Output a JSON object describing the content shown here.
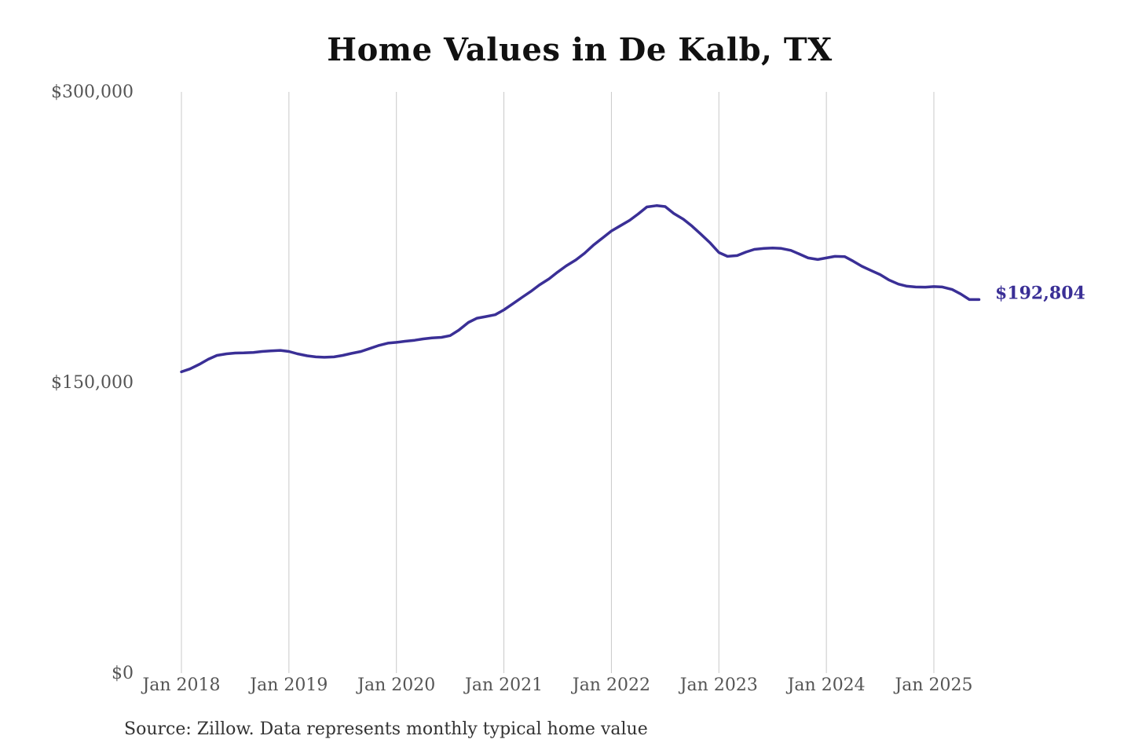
{
  "chart_data": {
    "type": "line",
    "title": "Home Values in De Kalb, TX",
    "xlabel": "",
    "ylabel": "",
    "source": "Source: Zillow. Data represents monthly typical home value",
    "ylim": [
      0,
      300000
    ],
    "yticks": [
      {
        "value": 0,
        "label": "$0"
      },
      {
        "value": 150000,
        "label": "$150,000"
      },
      {
        "value": 300000,
        "label": "$300,000"
      }
    ],
    "xlim": [
      2018.0,
      2025.5
    ],
    "xticks": [
      {
        "value": 2018,
        "label": "Jan 2018"
      },
      {
        "value": 2019,
        "label": "Jan 2019"
      },
      {
        "value": 2020,
        "label": "Jan 2020"
      },
      {
        "value": 2021,
        "label": "Jan 2021"
      },
      {
        "value": 2022,
        "label": "Jan 2022"
      },
      {
        "value": 2023,
        "label": "Jan 2023"
      },
      {
        "value": 2024,
        "label": "Jan 2024"
      },
      {
        "value": 2025,
        "label": "Jan 2025"
      }
    ],
    "grid": "vertical",
    "color": "#3a2f96",
    "end_label": "$192,804",
    "series": [
      {
        "x": [
          2018.0,
          2018.08,
          2018.17,
          2018.25,
          2018.33,
          2018.42,
          2018.5,
          2018.58,
          2018.67,
          2018.75,
          2018.83,
          2018.92,
          2019.0,
          2019.08,
          2019.17,
          2019.25,
          2019.33,
          2019.42,
          2019.5,
          2019.58,
          2019.67,
          2019.75,
          2019.83,
          2019.92,
          2020.0,
          2020.08,
          2020.17,
          2020.25,
          2020.33,
          2020.42,
          2020.5,
          2020.58,
          2020.67,
          2020.75,
          2020.83,
          2020.92,
          2021.0,
          2021.08,
          2021.17,
          2021.25,
          2021.33,
          2021.42,
          2021.5,
          2021.58,
          2021.67,
          2021.75,
          2021.83,
          2021.92,
          2022.0,
          2022.08,
          2022.17,
          2022.25,
          2022.33,
          2022.42,
          2022.5,
          2022.58,
          2022.67,
          2022.75,
          2022.83,
          2022.92,
          2023.0,
          2023.08,
          2023.17,
          2023.25,
          2023.33,
          2023.42,
          2023.5,
          2023.58,
          2023.67,
          2023.75,
          2023.83,
          2023.92,
          2024.0,
          2024.08,
          2024.17,
          2024.25,
          2024.33,
          2024.42,
          2024.5,
          2024.58,
          2024.67,
          2024.75,
          2024.83,
          2024.92,
          2025.0,
          2025.08,
          2025.17,
          2025.25,
          2025.33,
          2025.42
        ],
        "y": [
          155500,
          157000,
          159500,
          162000,
          164000,
          164800,
          165200,
          165300,
          165500,
          166000,
          166300,
          166600,
          166000,
          164800,
          163800,
          163200,
          163000,
          163200,
          164000,
          165000,
          166000,
          167500,
          169000,
          170300,
          170700,
          171300,
          171800,
          172500,
          173000,
          173300,
          174200,
          177000,
          181000,
          183200,
          184000,
          185000,
          187500,
          190500,
          194000,
          197000,
          200300,
          203500,
          207000,
          210200,
          213300,
          216700,
          220800,
          224700,
          228200,
          230800,
          233700,
          237000,
          240600,
          241300,
          240800,
          237300,
          234300,
          230700,
          226700,
          222000,
          217100,
          215100,
          215500,
          217300,
          218700,
          219200,
          219400,
          219200,
          218200,
          216300,
          214300,
          213500,
          214300,
          215100,
          215000,
          212600,
          210000,
          207700,
          205700,
          203000,
          200800,
          199700,
          199300,
          199200,
          199500,
          199300,
          198000,
          195700,
          192804,
          192804
        ]
      }
    ]
  }
}
